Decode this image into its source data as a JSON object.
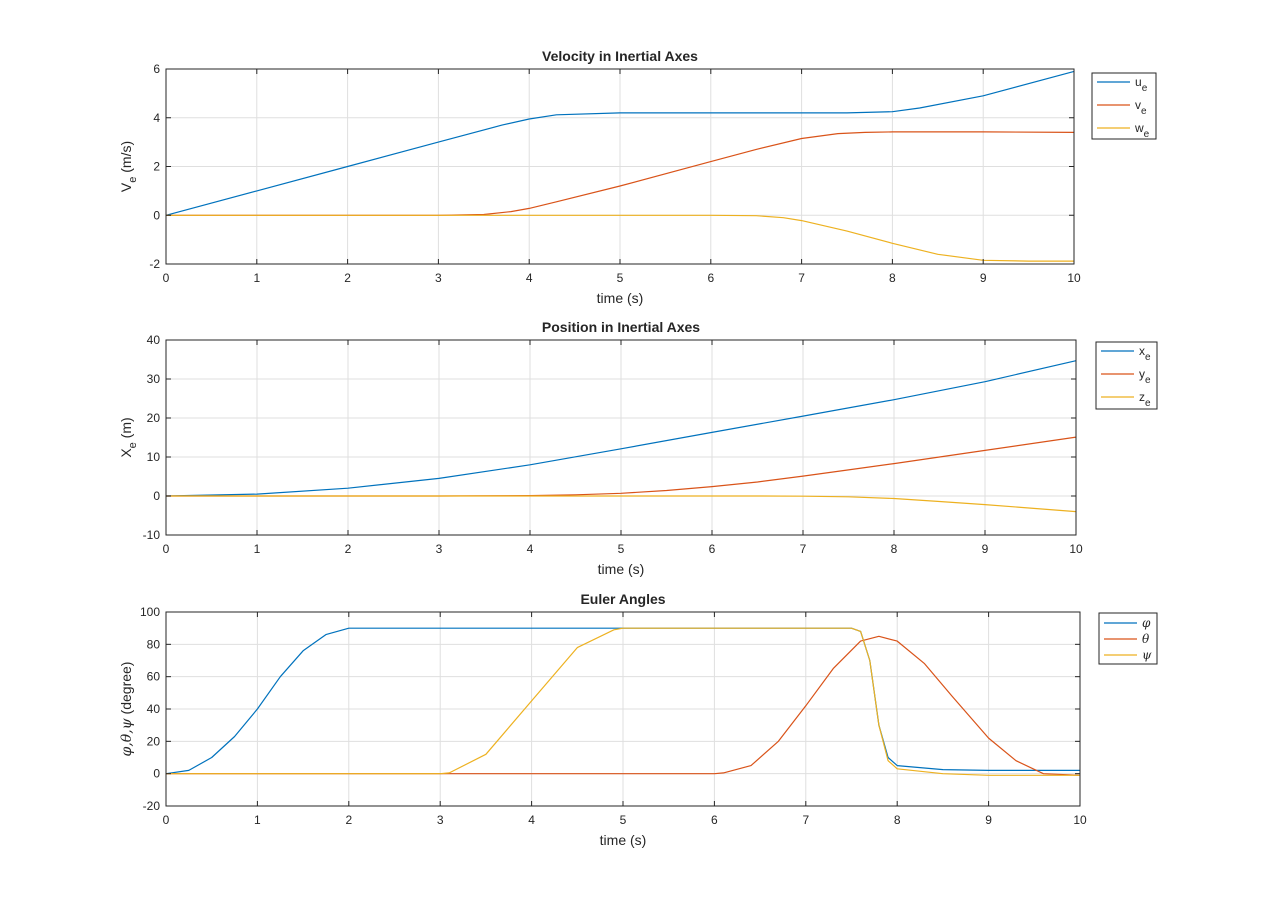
{
  "chart_data": [
    {
      "type": "line",
      "title": "Velocity in Inertial Axes",
      "xlabel": "time (s)",
      "ylabel": {
        "base": "V",
        "sub": "e",
        "rest": " (m/s)"
      },
      "xlim": [
        0,
        10
      ],
      "ylim": [
        -2,
        6
      ],
      "xticks": [
        0,
        1,
        2,
        3,
        4,
        5,
        6,
        7,
        8,
        9,
        10
      ],
      "yticks": [
        -2,
        0,
        2,
        4,
        6
      ],
      "grid": true,
      "legend_position": "outside-top-right",
      "series": [
        {
          "name": "u",
          "sub": "e",
          "color": "#0072BD",
          "x": [
            0,
            1,
            2,
            3,
            3.7,
            4,
            4.3,
            5,
            6,
            7,
            7.5,
            8,
            8.3,
            9,
            10
          ],
          "y": [
            0,
            1,
            2,
            3,
            3.7,
            3.95,
            4.12,
            4.2,
            4.2,
            4.2,
            4.2,
            4.25,
            4.4,
            4.9,
            5.9
          ]
        },
        {
          "name": "v",
          "sub": "e",
          "color": "#D95319",
          "x": [
            0,
            3,
            3.5,
            3.8,
            4,
            4.3,
            5,
            6,
            6.5,
            7,
            7.4,
            7.7,
            8,
            9,
            10
          ],
          "y": [
            0,
            0,
            0.03,
            0.15,
            0.28,
            0.55,
            1.2,
            2.2,
            2.7,
            3.15,
            3.35,
            3.4,
            3.42,
            3.42,
            3.4
          ]
        },
        {
          "name": "w",
          "sub": "e",
          "color": "#EDB120",
          "x": [
            0,
            1,
            2,
            3,
            4,
            5,
            6,
            6.5,
            6.8,
            7,
            7.5,
            8,
            8.5,
            9,
            9.5,
            10
          ],
          "y": [
            0,
            0,
            0,
            0,
            0,
            0,
            0,
            -0.02,
            -0.1,
            -0.22,
            -0.65,
            -1.15,
            -1.6,
            -1.85,
            -1.88,
            -1.88
          ]
        }
      ]
    },
    {
      "type": "line",
      "title": "Position in Inertial Axes",
      "xlabel": "time (s)",
      "ylabel": {
        "base": "X",
        "sub": "e",
        "rest": " (m)"
      },
      "xlim": [
        0,
        10
      ],
      "ylim": [
        -10,
        40
      ],
      "xticks": [
        0,
        1,
        2,
        3,
        4,
        5,
        6,
        7,
        8,
        9,
        10
      ],
      "yticks": [
        -10,
        0,
        10,
        20,
        30,
        40
      ],
      "grid": true,
      "legend_position": "outside-top-right",
      "series": [
        {
          "name": "x",
          "sub": "e",
          "color": "#0072BD",
          "x": [
            0,
            1,
            2,
            3,
            4,
            5,
            6,
            7,
            8,
            9,
            10
          ],
          "y": [
            0,
            0.5,
            2,
            4.5,
            8,
            12.1,
            16.3,
            20.5,
            24.7,
            29.3,
            34.7
          ]
        },
        {
          "name": "y",
          "sub": "e",
          "color": "#D95319",
          "x": [
            0,
            3,
            4,
            4.5,
            5,
            5.5,
            6,
            6.5,
            7,
            7.5,
            8,
            9,
            10
          ],
          "y": [
            0,
            0,
            0.1,
            0.3,
            0.7,
            1.4,
            2.4,
            3.6,
            5.1,
            6.7,
            8.3,
            11.7,
            15.1
          ]
        },
        {
          "name": "z",
          "sub": "e",
          "color": "#EDB120",
          "x": [
            0,
            6,
            6.5,
            7,
            7.5,
            8,
            8.5,
            9,
            9.5,
            10
          ],
          "y": [
            0,
            0,
            -0.01,
            -0.05,
            -0.2,
            -0.65,
            -1.4,
            -2.2,
            -3.1,
            -4.0
          ]
        }
      ]
    },
    {
      "type": "line",
      "title": "Euler Angles",
      "xlabel": "time (s)",
      "ylabel": {
        "greek": "φ,θ,ψ",
        "rest": " (degree)"
      },
      "xlim": [
        0,
        10
      ],
      "ylim": [
        -20,
        100
      ],
      "xticks": [
        0,
        1,
        2,
        3,
        4,
        5,
        6,
        7,
        8,
        9,
        10
      ],
      "yticks": [
        -20,
        0,
        20,
        40,
        60,
        80,
        100
      ],
      "grid": true,
      "legend_position": "outside-top-right",
      "series": [
        {
          "name": "φ",
          "greek": true,
          "color": "#0072BD",
          "x": [
            0,
            0.25,
            0.5,
            0.75,
            1,
            1.25,
            1.5,
            1.75,
            2,
            5,
            7.5,
            7.6,
            7.7,
            7.8,
            7.9,
            8,
            8.5,
            9,
            10
          ],
          "y": [
            0,
            2,
            10,
            23,
            40,
            60,
            76,
            86,
            90,
            90,
            90,
            88,
            70,
            30,
            10,
            5,
            2.5,
            2,
            2
          ]
        },
        {
          "name": "θ",
          "greek": true,
          "color": "#D95319",
          "x": [
            0,
            3,
            6,
            6.1,
            6.4,
            6.7,
            7,
            7.3,
            7.6,
            7.8,
            8,
            8.3,
            8.6,
            9,
            9.3,
            9.6,
            10
          ],
          "y": [
            0,
            0,
            0,
            0.5,
            5,
            20,
            42,
            65,
            82,
            85,
            82,
            68,
            48,
            22,
            8,
            0,
            -1
          ]
        },
        {
          "name": "ψ",
          "greek": true,
          "color": "#EDB120",
          "x": [
            0,
            3,
            3.1,
            3.5,
            4,
            4.5,
            4.9,
            5,
            6,
            7,
            7.5,
            7.6,
            7.7,
            7.8,
            7.9,
            8,
            8.5,
            9,
            10
          ],
          "y": [
            0,
            0,
            0.5,
            12,
            45,
            78,
            89,
            90,
            90,
            90,
            90,
            88,
            70,
            30,
            8,
            3,
            0,
            -1,
            -1
          ]
        }
      ]
    }
  ]
}
